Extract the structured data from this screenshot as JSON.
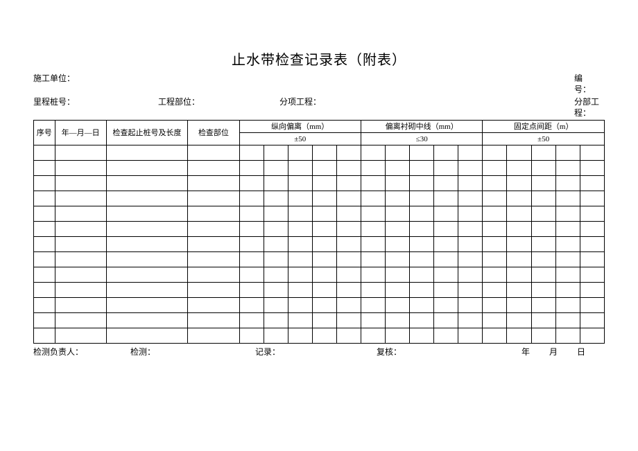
{
  "title": "止水带检查记录表（附表）",
  "meta": {
    "construction_unit_label": "施工单位：",
    "number_label": "编　号：",
    "mileage_label": "里程桩号：",
    "project_part_label": "工程部位：",
    "sub_item_label": "分项工程：",
    "section_label": "分部工程："
  },
  "table": {
    "columns": {
      "seq": "序号",
      "date": "年—月—日",
      "range": "检查起止桩号及长度",
      "pos": "检查部位",
      "group1_line1": "纵向偏离（mm）",
      "group1_line2": "±50",
      "group2_line1": "偏离衬砌中线（mm）",
      "group2_line2": "≤30",
      "group3_line1": "固定点间距（m）",
      "group3_line2": "±50"
    },
    "body_rows": 13,
    "measure_cols_per_group": 5,
    "groups": 3
  },
  "footer": {
    "leader": "检测负责人：",
    "tester": "检测：",
    "recorder": "记录：",
    "reviewer": "复核：",
    "date": "年　月　日"
  },
  "style": {
    "border_color": "#000000",
    "background": "#ffffff",
    "title_fontsize": 20,
    "body_fontsize": 11,
    "meta_fontsize": 12
  }
}
